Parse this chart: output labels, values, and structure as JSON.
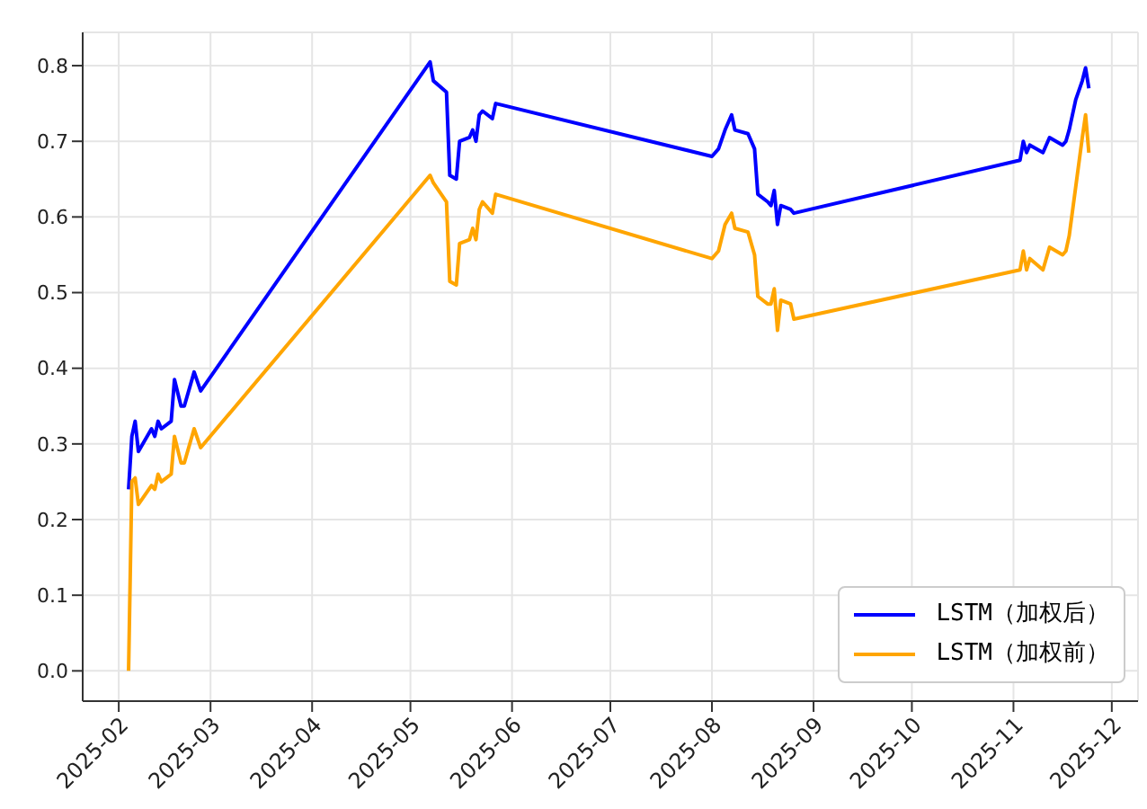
{
  "chart_data": {
    "type": "line",
    "x": [
      "2025-02-04",
      "2025-02-05",
      "2025-02-06",
      "2025-02-07",
      "2025-02-11",
      "2025-02-12",
      "2025-02-13",
      "2025-02-14",
      "2025-02-17",
      "2025-02-18",
      "2025-02-20",
      "2025-02-21",
      "2025-02-24",
      "2025-02-26",
      "2025-05-07",
      "2025-05-08",
      "2025-05-12",
      "2025-05-13",
      "2025-05-15",
      "2025-05-16",
      "2025-05-19",
      "2025-05-20",
      "2025-05-21",
      "2025-05-22",
      "2025-05-23",
      "2025-05-26",
      "2025-05-27",
      "2025-08-01",
      "2025-08-03",
      "2025-08-05",
      "2025-08-07",
      "2025-08-08",
      "2025-08-12",
      "2025-08-14",
      "2025-08-15",
      "2025-08-18",
      "2025-08-19",
      "2025-08-20",
      "2025-08-21",
      "2025-08-22",
      "2025-08-25",
      "2025-08-26",
      "2025-11-03",
      "2025-11-04",
      "2025-11-05",
      "2025-11-06",
      "2025-11-10",
      "2025-11-12",
      "2025-11-16",
      "2025-11-17",
      "2025-11-18",
      "2025-11-20",
      "2025-11-22",
      "2025-11-23",
      "2025-11-24"
    ],
    "series": [
      {
        "name": "LSTM（加权后）",
        "color": "#0000ff",
        "values": [
          0.24,
          0.31,
          0.33,
          0.29,
          0.32,
          0.31,
          0.33,
          0.32,
          0.33,
          0.385,
          0.35,
          0.35,
          0.395,
          0.37,
          0.805,
          0.78,
          0.765,
          0.655,
          0.65,
          0.7,
          0.705,
          0.715,
          0.7,
          0.735,
          0.74,
          0.73,
          0.75,
          0.68,
          0.69,
          0.715,
          0.735,
          0.715,
          0.71,
          0.69,
          0.63,
          0.62,
          0.615,
          0.635,
          0.59,
          0.615,
          0.61,
          0.605,
          0.675,
          0.7,
          0.685,
          0.695,
          0.685,
          0.705,
          0.695,
          0.7,
          0.715,
          0.755,
          0.78,
          0.797,
          0.77
        ]
      },
      {
        "name": "LSTM（加权前）",
        "color": "#ffa500",
        "values": [
          0.0,
          0.25,
          0.255,
          0.22,
          0.245,
          0.24,
          0.26,
          0.25,
          0.26,
          0.31,
          0.275,
          0.275,
          0.32,
          0.295,
          0.655,
          0.645,
          0.62,
          0.515,
          0.51,
          0.565,
          0.57,
          0.585,
          0.57,
          0.61,
          0.62,
          0.605,
          0.63,
          0.545,
          0.555,
          0.59,
          0.605,
          0.585,
          0.58,
          0.55,
          0.495,
          0.485,
          0.485,
          0.505,
          0.45,
          0.49,
          0.485,
          0.465,
          0.53,
          0.555,
          0.53,
          0.545,
          0.53,
          0.56,
          0.55,
          0.555,
          0.575,
          0.64,
          0.705,
          0.735,
          0.685
        ]
      }
    ],
    "xlim": [
      "2025-01-21",
      "2025-12-09"
    ],
    "xticks": [
      {
        "value": "2025-02-01",
        "label": "2025-02"
      },
      {
        "value": "2025-03-01",
        "label": "2025-03"
      },
      {
        "value": "2025-04-01",
        "label": "2025-04"
      },
      {
        "value": "2025-05-01",
        "label": "2025-05"
      },
      {
        "value": "2025-06-01",
        "label": "2025-06"
      },
      {
        "value": "2025-07-01",
        "label": "2025-07"
      },
      {
        "value": "2025-08-01",
        "label": "2025-08"
      },
      {
        "value": "2025-09-01",
        "label": "2025-09"
      },
      {
        "value": "2025-10-01",
        "label": "2025-10"
      },
      {
        "value": "2025-11-01",
        "label": "2025-11"
      },
      {
        "value": "2025-12-01",
        "label": "2025-12"
      }
    ],
    "ylim": [
      -0.04,
      0.844
    ],
    "yticks": [
      {
        "value": 0,
        "label": "0.0"
      },
      0.1,
      0.2,
      0.3,
      0.4,
      0.5,
      0.6,
      0.7,
      0.8
    ],
    "grid": true,
    "legend": "bottom right",
    "marker": "none",
    "line_style": "solid"
  }
}
